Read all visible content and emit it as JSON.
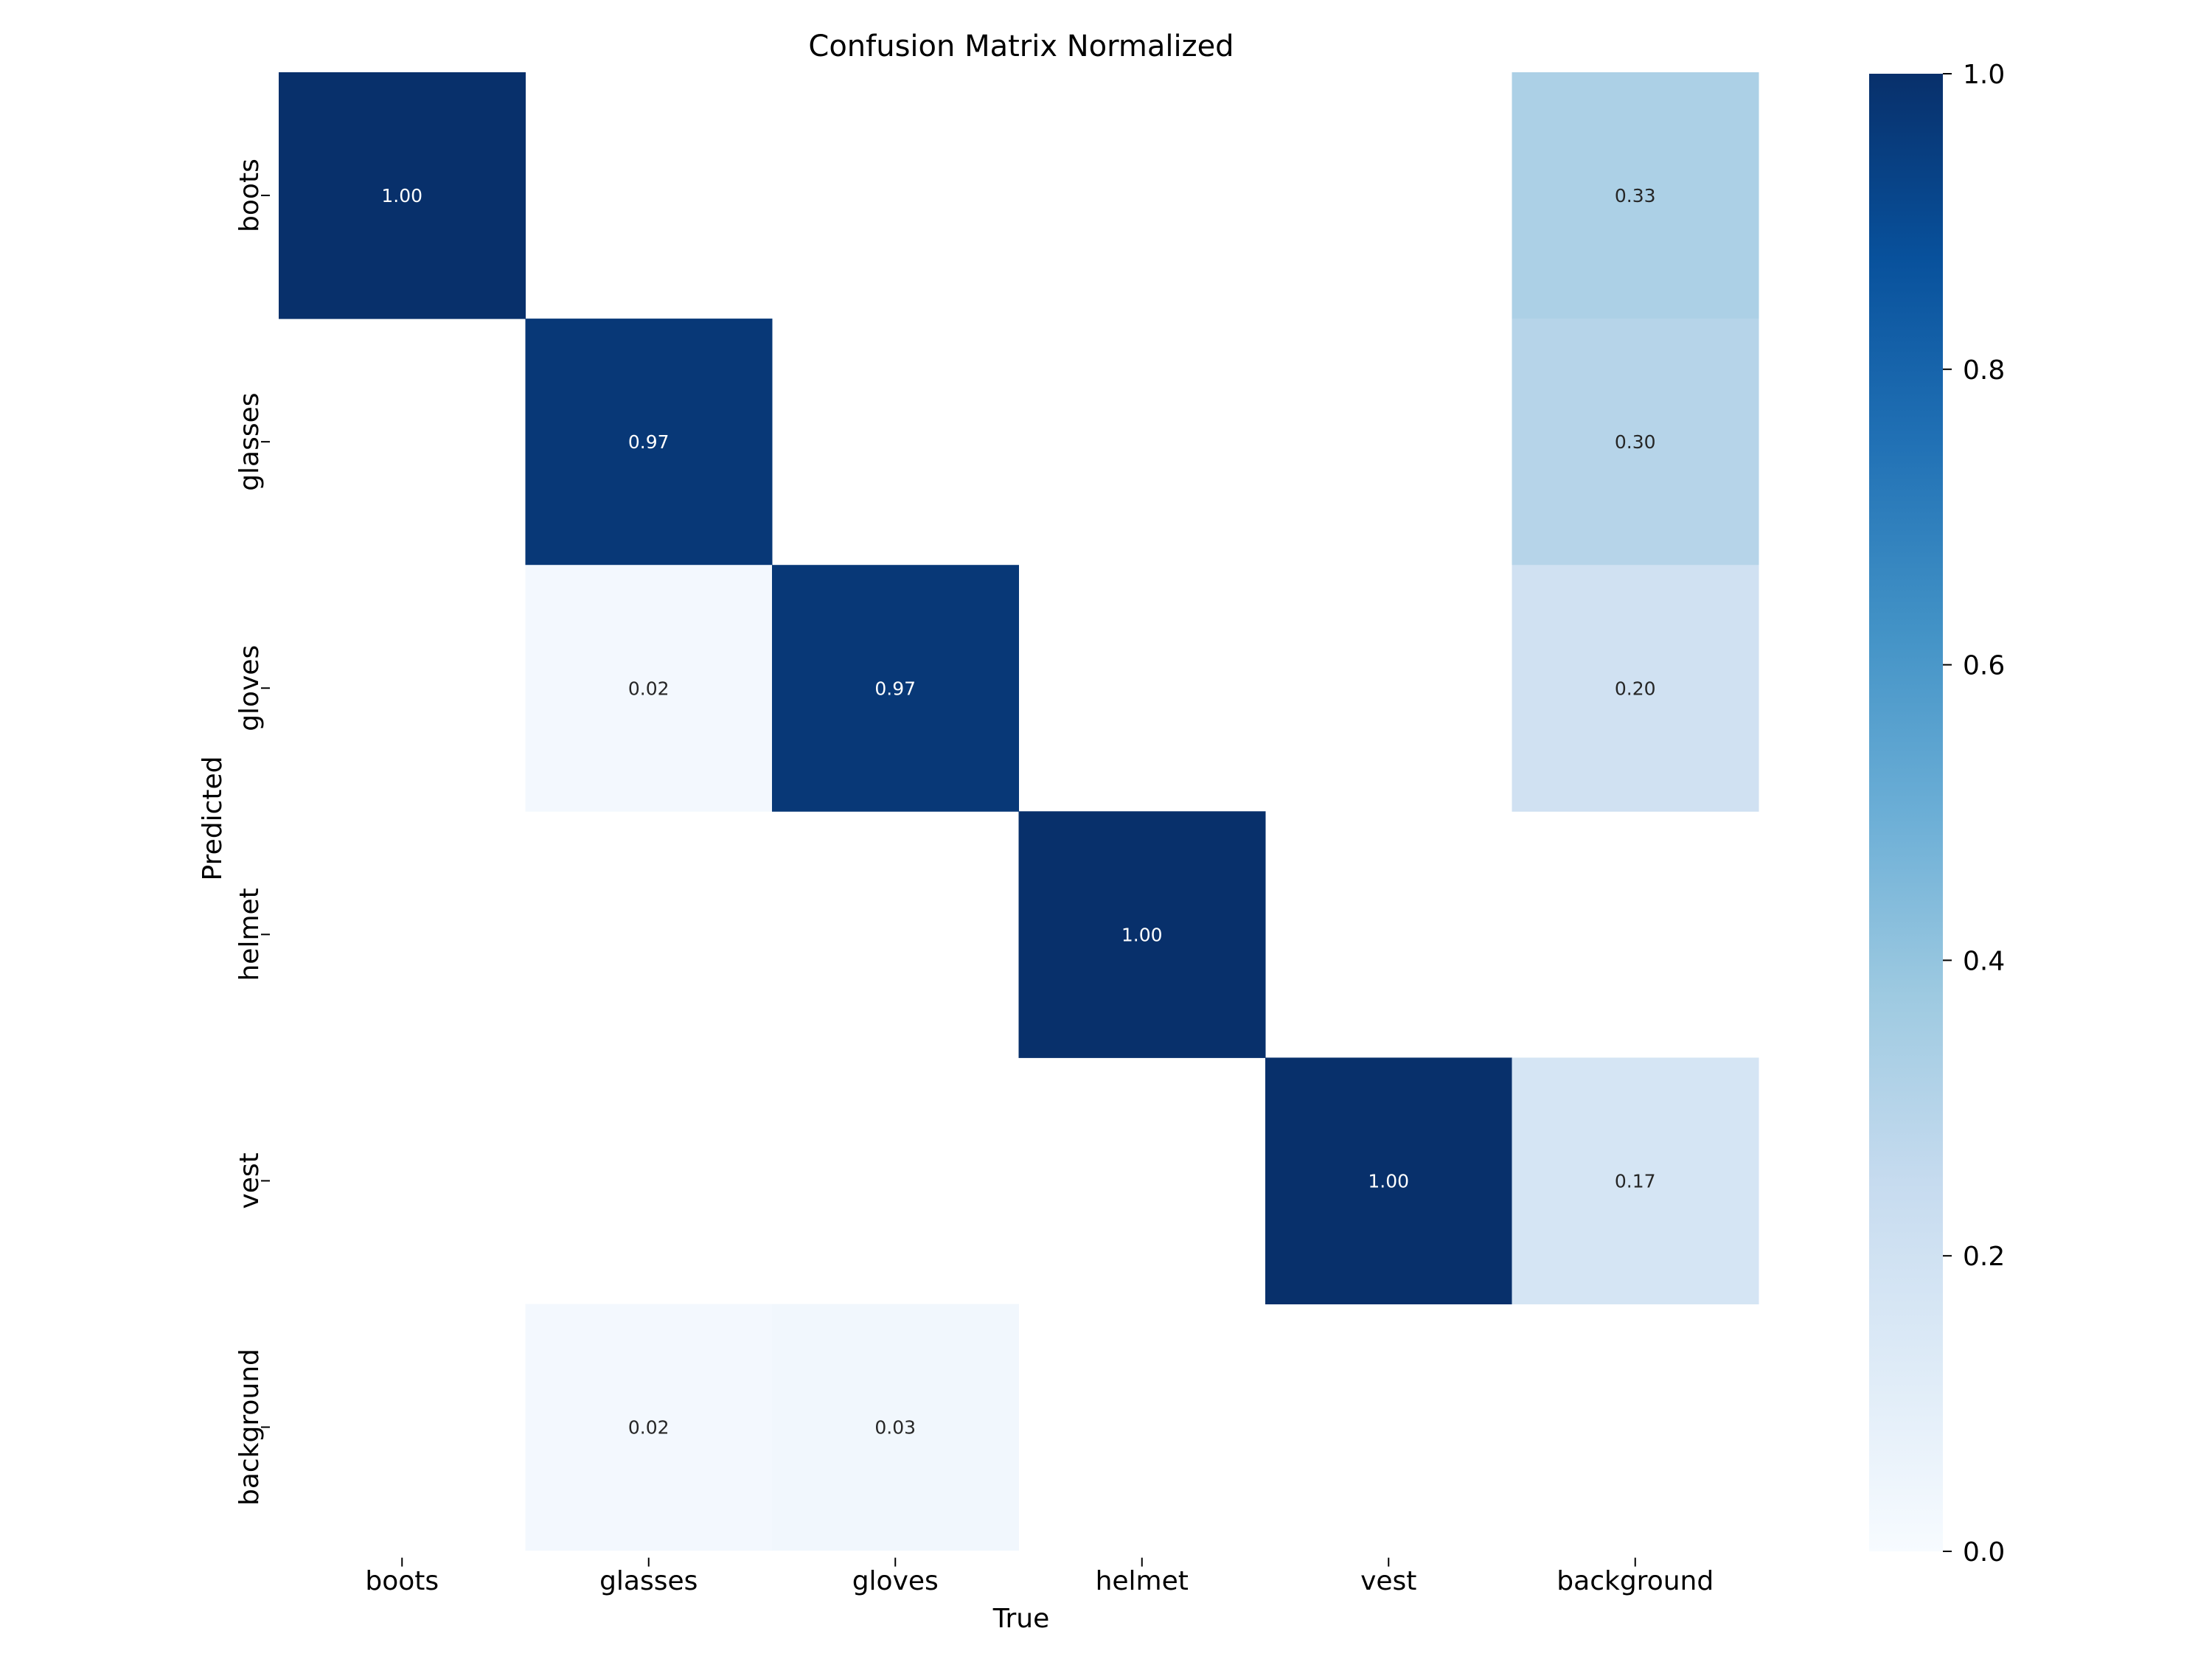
{
  "chart_data": {
    "type": "heatmap",
    "title": "Confusion Matrix Normalized",
    "xlabel": "True",
    "ylabel": "Predicted",
    "x_categories": [
      "boots",
      "glasses",
      "gloves",
      "helmet",
      "vest",
      "background"
    ],
    "y_categories": [
      "boots",
      "glasses",
      "gloves",
      "helmet",
      "vest",
      "background"
    ],
    "values": [
      [
        1.0,
        null,
        null,
        null,
        null,
        0.33
      ],
      [
        null,
        0.97,
        null,
        null,
        null,
        0.3
      ],
      [
        null,
        0.02,
        0.97,
        null,
        null,
        0.2
      ],
      [
        null,
        null,
        null,
        1.0,
        null,
        null
      ],
      [
        null,
        null,
        null,
        null,
        1.0,
        0.17
      ],
      [
        null,
        0.02,
        0.03,
        null,
        null,
        null
      ]
    ],
    "value_format": "0.00",
    "colormap": "Blues",
    "vmin": 0.0,
    "vmax": 1.0,
    "colorbar_ticks": [
      "0.0",
      "0.2",
      "0.4",
      "0.6",
      "0.8",
      "1.0"
    ]
  }
}
